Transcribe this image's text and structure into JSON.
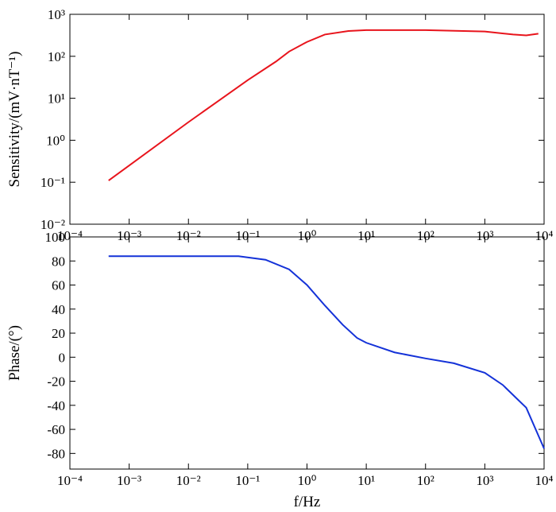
{
  "chart_data": [
    {
      "type": "line",
      "xlog": true,
      "ylog": true,
      "ylabel": "Sensitivity/(mV·nT⁻¹)",
      "xlim": [
        0.0001,
        10000
      ],
      "ylim": [
        0.01,
        1000
      ],
      "xticks": [
        {
          "value": 0.0001,
          "label": "10⁻⁴"
        },
        {
          "value": 0.001,
          "label": "10⁻³"
        },
        {
          "value": 0.01,
          "label": "10⁻²"
        },
        {
          "value": 0.1,
          "label": "10⁻¹"
        },
        {
          "value": 1,
          "label": "10⁰"
        },
        {
          "value": 10,
          "label": "10¹"
        },
        {
          "value": 100,
          "label": "10²"
        },
        {
          "value": 1000,
          "label": "10³"
        },
        {
          "value": 10000,
          "label": "10⁴"
        }
      ],
      "yticks": [
        {
          "value": 0.01,
          "label": "10⁻²"
        },
        {
          "value": 0.1,
          "label": "10⁻¹"
        },
        {
          "value": 1,
          "label": "10⁰"
        },
        {
          "value": 10,
          "label": "10¹"
        },
        {
          "value": 100,
          "label": "10²"
        },
        {
          "value": 1000,
          "label": "10³"
        }
      ],
      "series": [
        {
          "color": "#e8141c",
          "x": [
            0.00045,
            0.001,
            0.01,
            0.1,
            0.3,
            0.5,
            1,
            2,
            5,
            10,
            100,
            1000,
            3000,
            5000,
            8000
          ],
          "values": [
            0.11,
            0.25,
            2.7,
            27,
            75,
            130,
            220,
            330,
            400,
            420,
            420,
            390,
            330,
            315,
            345
          ]
        }
      ]
    },
    {
      "type": "line",
      "xlog": true,
      "ylog": false,
      "ylabel": "Phase/(°)",
      "xlabel": "f/Hz",
      "xlim": [
        0.0001,
        10000
      ],
      "ylim": [
        -93,
        100
      ],
      "xticks": [
        {
          "value": 0.0001,
          "label": "10⁻⁴"
        },
        {
          "value": 0.001,
          "label": "10⁻³"
        },
        {
          "value": 0.01,
          "label": "10⁻²"
        },
        {
          "value": 0.1,
          "label": "10⁻¹"
        },
        {
          "value": 1,
          "label": "10⁰"
        },
        {
          "value": 10,
          "label": "10¹"
        },
        {
          "value": 100,
          "label": "10²"
        },
        {
          "value": 1000,
          "label": "10³"
        },
        {
          "value": 10000,
          "label": "10⁴"
        }
      ],
      "yticks": [
        100,
        80,
        60,
        40,
        20,
        0,
        -20,
        -40,
        -60,
        -80
      ],
      "series": [
        {
          "color": "#1432d8",
          "x": [
            0.00045,
            0.07,
            0.2,
            0.5,
            1,
            2,
            4,
            7,
            10,
            30,
            100,
            300,
            1000,
            2000,
            5000,
            10000
          ],
          "values": [
            84,
            84,
            81,
            73,
            60,
            43,
            27,
            16,
            12,
            4,
            -1,
            -5,
            -13,
            -23,
            -42,
            -76
          ]
        }
      ]
    }
  ]
}
